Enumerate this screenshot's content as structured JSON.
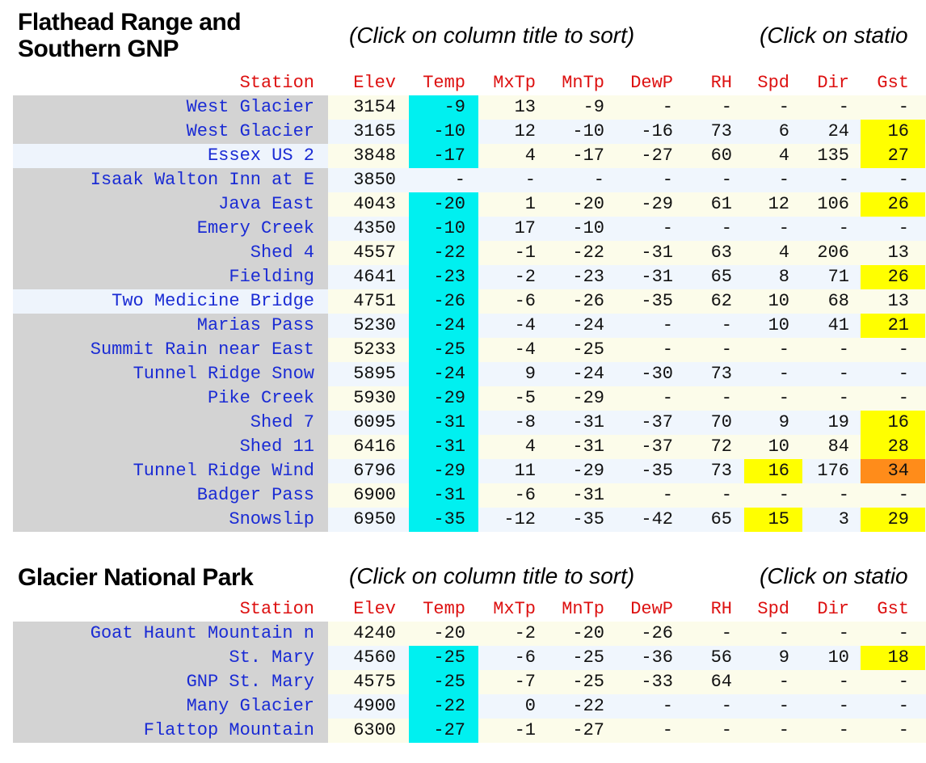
{
  "columns": [
    "Station",
    "Elev",
    "Temp",
    "MxTp",
    "MnTp",
    "DewP",
    "RH",
    "Spd",
    "Dir",
    "Gst"
  ],
  "sort_note": "(Click on column title to sort)",
  "map_note": "(Click on statio",
  "colors": {
    "temp_cold": "#00f0f0",
    "gust_yellow": "#ffff00",
    "gust_orange": "#ff8c1a",
    "header_text": "#dd1111",
    "station_text": "#1a2bd4"
  },
  "sections": [
    {
      "title_line1": "Flathead Range and",
      "title_line2": "Southern GNP",
      "rows": [
        {
          "station": "West Glacier",
          "elev": "3154",
          "temp": "-9",
          "mxtp": "13",
          "mntp": "-9",
          "dewp": "-",
          "rh": "-",
          "spd": "-",
          "dir": "-",
          "gst": "-",
          "temp_hl": true,
          "gst_hl": "",
          "spd_hl": "",
          "st_bg": "gray"
        },
        {
          "station": "West Glacier",
          "elev": "3165",
          "temp": "-10",
          "mxtp": "12",
          "mntp": "-10",
          "dewp": "-16",
          "rh": "73",
          "spd": "6",
          "dir": "24",
          "gst": "16",
          "temp_hl": true,
          "gst_hl": "yellow",
          "spd_hl": "",
          "st_bg": "gray"
        },
        {
          "station": "Essex US 2",
          "elev": "3848",
          "temp": "-17",
          "mxtp": "4",
          "mntp": "-17",
          "dewp": "-27",
          "rh": "60",
          "spd": "4",
          "dir": "135",
          "gst": "27",
          "temp_hl": true,
          "gst_hl": "yellow",
          "spd_hl": "",
          "st_bg": "pale"
        },
        {
          "station": "Isaak Walton Inn at E",
          "elev": "3850",
          "temp": "-",
          "mxtp": "-",
          "mntp": "-",
          "dewp": "-",
          "rh": "-",
          "spd": "-",
          "dir": "-",
          "gst": "-",
          "temp_hl": false,
          "gst_hl": "",
          "spd_hl": "",
          "st_bg": "gray"
        },
        {
          "station": "Java East",
          "elev": "4043",
          "temp": "-20",
          "mxtp": "1",
          "mntp": "-20",
          "dewp": "-29",
          "rh": "61",
          "spd": "12",
          "dir": "106",
          "gst": "26",
          "temp_hl": true,
          "gst_hl": "yellow",
          "spd_hl": "",
          "st_bg": "gray"
        },
        {
          "station": "Emery Creek",
          "elev": "4350",
          "temp": "-10",
          "mxtp": "17",
          "mntp": "-10",
          "dewp": "-",
          "rh": "-",
          "spd": "-",
          "dir": "-",
          "gst": "-",
          "temp_hl": true,
          "gst_hl": "",
          "spd_hl": "",
          "st_bg": "gray"
        },
        {
          "station": "Shed 4",
          "elev": "4557",
          "temp": "-22",
          "mxtp": "-1",
          "mntp": "-22",
          "dewp": "-31",
          "rh": "63",
          "spd": "4",
          "dir": "206",
          "gst": "13",
          "temp_hl": true,
          "gst_hl": "",
          "spd_hl": "",
          "st_bg": "gray"
        },
        {
          "station": "Fielding",
          "elev": "4641",
          "temp": "-23",
          "mxtp": "-2",
          "mntp": "-23",
          "dewp": "-31",
          "rh": "65",
          "spd": "8",
          "dir": "71",
          "gst": "26",
          "temp_hl": true,
          "gst_hl": "yellow",
          "spd_hl": "",
          "st_bg": "gray"
        },
        {
          "station": "Two Medicine Bridge",
          "elev": "4751",
          "temp": "-26",
          "mxtp": "-6",
          "mntp": "-26",
          "dewp": "-35",
          "rh": "62",
          "spd": "10",
          "dir": "68",
          "gst": "13",
          "temp_hl": true,
          "gst_hl": "",
          "spd_hl": "",
          "st_bg": "pale"
        },
        {
          "station": "Marias Pass",
          "elev": "5230",
          "temp": "-24",
          "mxtp": "-4",
          "mntp": "-24",
          "dewp": "-",
          "rh": "-",
          "spd": "10",
          "dir": "41",
          "gst": "21",
          "temp_hl": true,
          "gst_hl": "yellow",
          "spd_hl": "",
          "st_bg": "gray"
        },
        {
          "station": "Summit Rain near East",
          "elev": "5233",
          "temp": "-25",
          "mxtp": "-4",
          "mntp": "-25",
          "dewp": "-",
          "rh": "-",
          "spd": "-",
          "dir": "-",
          "gst": "-",
          "temp_hl": true,
          "gst_hl": "",
          "spd_hl": "",
          "st_bg": "gray"
        },
        {
          "station": "Tunnel Ridge Snow",
          "elev": "5895",
          "temp": "-24",
          "mxtp": "9",
          "mntp": "-24",
          "dewp": "-30",
          "rh": "73",
          "spd": "-",
          "dir": "-",
          "gst": "-",
          "temp_hl": true,
          "gst_hl": "",
          "spd_hl": "",
          "st_bg": "gray"
        },
        {
          "station": "Pike Creek",
          "elev": "5930",
          "temp": "-29",
          "mxtp": "-5",
          "mntp": "-29",
          "dewp": "-",
          "rh": "-",
          "spd": "-",
          "dir": "-",
          "gst": "-",
          "temp_hl": true,
          "gst_hl": "",
          "spd_hl": "",
          "st_bg": "gray"
        },
        {
          "station": "Shed 7",
          "elev": "6095",
          "temp": "-31",
          "mxtp": "-8",
          "mntp": "-31",
          "dewp": "-37",
          "rh": "70",
          "spd": "9",
          "dir": "19",
          "gst": "16",
          "temp_hl": true,
          "gst_hl": "yellow",
          "spd_hl": "",
          "st_bg": "gray"
        },
        {
          "station": "Shed 11",
          "elev": "6416",
          "temp": "-31",
          "mxtp": "4",
          "mntp": "-31",
          "dewp": "-37",
          "rh": "72",
          "spd": "10",
          "dir": "84",
          "gst": "28",
          "temp_hl": true,
          "gst_hl": "yellow",
          "spd_hl": "",
          "st_bg": "gray"
        },
        {
          "station": "Tunnel Ridge Wind",
          "elev": "6796",
          "temp": "-29",
          "mxtp": "11",
          "mntp": "-29",
          "dewp": "-35",
          "rh": "73",
          "spd": "16",
          "dir": "176",
          "gst": "34",
          "temp_hl": true,
          "gst_hl": "orange",
          "spd_hl": "yellow",
          "st_bg": "gray"
        },
        {
          "station": "Badger Pass",
          "elev": "6900",
          "temp": "-31",
          "mxtp": "-6",
          "mntp": "-31",
          "dewp": "-",
          "rh": "-",
          "spd": "-",
          "dir": "-",
          "gst": "-",
          "temp_hl": true,
          "gst_hl": "",
          "spd_hl": "",
          "st_bg": "gray"
        },
        {
          "station": "Snowslip",
          "elev": "6950",
          "temp": "-35",
          "mxtp": "-12",
          "mntp": "-35",
          "dewp": "-42",
          "rh": "65",
          "spd": "15",
          "dir": "3",
          "gst": "29",
          "temp_hl": true,
          "gst_hl": "yellow",
          "spd_hl": "yellow",
          "st_bg": "gray"
        }
      ]
    },
    {
      "title_line1": "Glacier National Park",
      "title_line2": "",
      "rows": [
        {
          "station": "Goat Haunt Mountain n",
          "elev": "4240",
          "temp": "-20",
          "mxtp": "-2",
          "mntp": "-20",
          "dewp": "-26",
          "rh": "-",
          "spd": "-",
          "dir": "-",
          "gst": "-",
          "temp_hl": false,
          "gst_hl": "",
          "spd_hl": "",
          "st_bg": "gray"
        },
        {
          "station": "St. Mary",
          "elev": "4560",
          "temp": "-25",
          "mxtp": "-6",
          "mntp": "-25",
          "dewp": "-36",
          "rh": "56",
          "spd": "9",
          "dir": "10",
          "gst": "18",
          "temp_hl": true,
          "gst_hl": "yellow",
          "spd_hl": "",
          "st_bg": "gray"
        },
        {
          "station": "GNP St. Mary",
          "elev": "4575",
          "temp": "-25",
          "mxtp": "-7",
          "mntp": "-25",
          "dewp": "-33",
          "rh": "64",
          "spd": "-",
          "dir": "-",
          "gst": "-",
          "temp_hl": true,
          "gst_hl": "",
          "spd_hl": "",
          "st_bg": "gray"
        },
        {
          "station": "Many Glacier",
          "elev": "4900",
          "temp": "-22",
          "mxtp": "0",
          "mntp": "-22",
          "dewp": "-",
          "rh": "-",
          "spd": "-",
          "dir": "-",
          "gst": "-",
          "temp_hl": true,
          "gst_hl": "",
          "spd_hl": "",
          "st_bg": "gray"
        },
        {
          "station": "Flattop Mountain",
          "elev": "6300",
          "temp": "-27",
          "mxtp": "-1",
          "mntp": "-27",
          "dewp": "-",
          "rh": "-",
          "spd": "-",
          "dir": "-",
          "gst": "-",
          "temp_hl": true,
          "gst_hl": "",
          "spd_hl": "",
          "st_bg": "gray"
        }
      ]
    }
  ]
}
